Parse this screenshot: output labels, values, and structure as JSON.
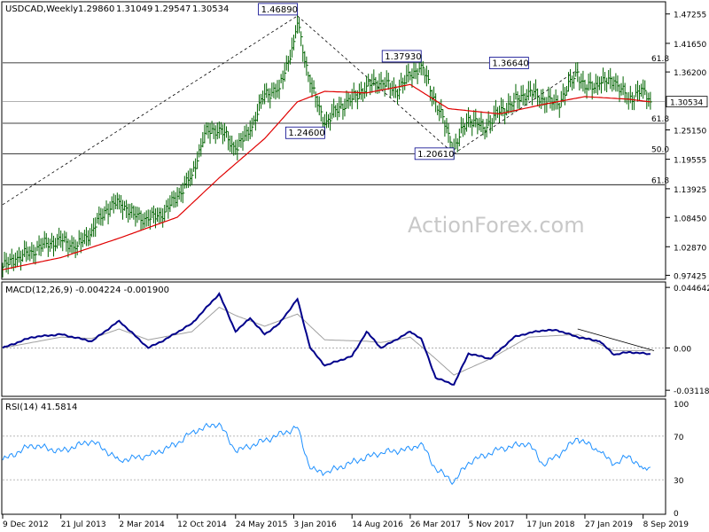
{
  "colors": {
    "background": "#ffffff",
    "frame": "#000000",
    "price_bars": "#006400",
    "moving_average": "#e00000",
    "macd_line": "#00008b",
    "signal_line": "#a0a0a0",
    "rsi_line": "#1e90ff",
    "level_lines": "#000000",
    "watermark": "#c8c8c8"
  },
  "watermark": "ActionForex.com",
  "chart_data": [
    {
      "type": "line",
      "panel": "price",
      "title": "USDCAD,Weekly",
      "header_values": [
        "1.29860",
        "1.31049",
        "1.29547",
        "1.30534"
      ],
      "ylim": [
        0.9683,
        1.4941
      ],
      "y_tick_labels": [
        "1.47255",
        "1.41650",
        "1.36200",
        "1.30534",
        "1.25150",
        "1.19555",
        "1.13925",
        "1.08450",
        "1.02870",
        "0.97425"
      ],
      "last_price_label": "1.30534",
      "annotations": [
        {
          "text": "1.46890",
          "x": "2016-01-17",
          "y": 1.4689
        },
        {
          "text": "1.37930",
          "x": "2017-05-07",
          "y": 1.3793
        },
        {
          "text": "1.36640",
          "x": "2018-06-24",
          "y": 1.3664
        },
        {
          "text": "1.24600",
          "x": "2016-05-01",
          "y": 1.246
        },
        {
          "text": "1.20610",
          "x": "2017-09-10",
          "y": 1.2061
        }
      ],
      "horizontal_levels": [
        {
          "value": 1.3793,
          "label": "61.8"
        },
        {
          "value": 1.2642,
          "label": "61.8"
        },
        {
          "value": 1.2061,
          "label": "50.0"
        },
        {
          "value": 1.147,
          "label": "61.8"
        },
        {
          "value": 1.30534,
          "label": ""
        }
      ],
      "trend_lines": [
        {
          "from": {
            "x": "2012-12-09",
            "y": 1.109
          },
          "to": {
            "x": "2016-01-17",
            "y": 1.4689
          }
        },
        {
          "from": {
            "x": "2016-01-17",
            "y": 1.4689
          },
          "to": {
            "x": "2017-09-10",
            "y": 1.2061
          }
        },
        {
          "from": {
            "x": "2017-09-10",
            "y": 1.2061
          },
          "to": {
            "x": "2018-12-30",
            "y": 1.3664
          }
        }
      ],
      "series": [
        {
          "kind": "close",
          "x": [
            "2012-12-09",
            "2013-01-27",
            "2013-03-31",
            "2013-05-26",
            "2013-07-21",
            "2013-09-22",
            "2013-11-17",
            "2014-01-12",
            "2014-03-02",
            "2014-04-27",
            "2014-06-22",
            "2014-08-24",
            "2014-10-12",
            "2014-12-07",
            "2015-01-25",
            "2015-03-22",
            "2015-05-24",
            "2015-07-19",
            "2015-09-13",
            "2015-11-08",
            "2016-01-03",
            "2016-01-17",
            "2016-03-06",
            "2016-05-01",
            "2016-06-26",
            "2016-08-14",
            "2016-10-09",
            "2016-12-04",
            "2017-01-29",
            "2017-03-26",
            "2017-05-07",
            "2017-07-02",
            "2017-08-20",
            "2017-09-10",
            "2017-11-05",
            "2017-12-31",
            "2018-03-04",
            "2018-04-29",
            "2018-06-24",
            "2018-08-19",
            "2018-10-14",
            "2018-12-30",
            "2019-01-27",
            "2019-03-24",
            "2019-05-19",
            "2019-07-14",
            "2019-09-08",
            "2019-10-06"
          ],
          "values": [
            0.99,
            1.005,
            1.02,
            1.035,
            1.04,
            1.03,
            1.06,
            1.1,
            1.115,
            1.09,
            1.08,
            1.095,
            1.125,
            1.165,
            1.245,
            1.255,
            1.215,
            1.25,
            1.32,
            1.33,
            1.42,
            1.455,
            1.34,
            1.262,
            1.295,
            1.31,
            1.335,
            1.345,
            1.325,
            1.355,
            1.375,
            1.305,
            1.245,
            1.215,
            1.275,
            1.255,
            1.285,
            1.305,
            1.325,
            1.31,
            1.3,
            1.362,
            1.33,
            1.34,
            1.345,
            1.31,
            1.33,
            1.305
          ]
        },
        {
          "kind": "moving_average",
          "x": [
            "2012-12-09",
            "2013-07-21",
            "2014-03-02",
            "2014-10-12",
            "2015-03-22",
            "2015-09-13",
            "2016-01-17",
            "2016-05-01",
            "2016-10-09",
            "2017-03-26",
            "2017-08-20",
            "2018-03-04",
            "2018-08-19",
            "2019-01-27",
            "2019-07-14",
            "2019-10-06"
          ],
          "values": [
            0.985,
            1.008,
            1.045,
            1.085,
            1.16,
            1.235,
            1.305,
            1.325,
            1.322,
            1.338,
            1.292,
            1.282,
            1.3,
            1.315,
            1.31,
            1.305
          ]
        }
      ]
    },
    {
      "type": "line",
      "panel": "macd",
      "title": "MACD(12,26,9) -0.004224 -0.001900",
      "ylim": [
        -0.035,
        0.048
      ],
      "y_tick_labels": [
        "0.044642",
        "0.00",
        "-0.031183"
      ],
      "series": [
        {
          "kind": "macd",
          "x": [
            "2012-12-09",
            "2013-03-31",
            "2013-07-21",
            "2013-11-17",
            "2014-03-02",
            "2014-06-22",
            "2014-08-24",
            "2014-12-07",
            "2015-03-22",
            "2015-05-24",
            "2015-07-19",
            "2015-09-13",
            "2015-11-08",
            "2016-01-17",
            "2016-03-06",
            "2016-05-01",
            "2016-08-14",
            "2016-10-09",
            "2016-12-04",
            "2017-03-26",
            "2017-05-07",
            "2017-07-02",
            "2017-09-10",
            "2017-11-05",
            "2018-01-28",
            "2018-04-29",
            "2018-06-24",
            "2018-08-19",
            "2018-10-14",
            "2018-12-30",
            "2019-03-24",
            "2019-05-19",
            "2019-07-14",
            "2019-10-06"
          ],
          "values": [
            0.0,
            0.008,
            0.01,
            0.005,
            0.02,
            0.0,
            0.006,
            0.018,
            0.04,
            0.012,
            0.022,
            0.01,
            0.018,
            0.036,
            0.0,
            -0.013,
            -0.006,
            0.012,
            0.0,
            0.012,
            0.007,
            -0.022,
            -0.027,
            -0.004,
            -0.008,
            0.008,
            0.011,
            0.013,
            0.013,
            0.008,
            0.005,
            -0.005,
            -0.003,
            -0.0045
          ]
        },
        {
          "kind": "signal",
          "x": [
            "2012-12-09",
            "2013-07-21",
            "2013-11-17",
            "2014-03-02",
            "2014-06-22",
            "2014-12-07",
            "2015-03-22",
            "2015-05-24",
            "2015-09-13",
            "2016-01-17",
            "2016-05-01",
            "2016-10-09",
            "2016-12-04",
            "2017-03-26",
            "2017-07-02",
            "2017-09-10",
            "2018-01-28",
            "2018-06-24",
            "2018-12-30",
            "2019-05-19",
            "2019-10-06"
          ],
          "values": [
            0.0,
            0.008,
            0.007,
            0.014,
            0.006,
            0.012,
            0.03,
            0.024,
            0.016,
            0.025,
            0.006,
            0.005,
            0.004,
            0.008,
            -0.008,
            -0.02,
            -0.008,
            0.008,
            0.01,
            -0.002,
            -0.0019
          ]
        }
      ],
      "trend_lines": [
        {
          "from": {
            "x": "2018-12-30",
            "y": 0.014
          },
          "to": {
            "x": "2019-10-20",
            "y": -0.002
          }
        }
      ]
    },
    {
      "type": "line",
      "panel": "rsi",
      "title": "RSI(14) 41.5814",
      "ylim": [
        0,
        100
      ],
      "y_tick_labels": [
        "100",
        "70",
        "30",
        "0"
      ],
      "levels": [
        70,
        30
      ],
      "series": [
        {
          "kind": "rsi",
          "x": [
            "2012-12-09",
            "2013-03-31",
            "2013-07-21",
            "2013-11-17",
            "2014-03-02",
            "2014-06-22",
            "2014-10-12",
            "2014-12-07",
            "2015-03-22",
            "2015-05-24",
            "2015-09-13",
            "2016-01-17",
            "2016-03-06",
            "2016-05-01",
            "2016-08-14",
            "2016-12-04",
            "2017-03-26",
            "2017-05-07",
            "2017-07-02",
            "2017-09-10",
            "2017-11-05",
            "2018-03-04",
            "2018-06-24",
            "2018-08-19",
            "2018-10-14",
            "2018-12-30",
            "2019-03-24",
            "2019-05-19",
            "2019-07-14",
            "2019-09-08",
            "2019-10-06"
          ],
          "values": [
            48,
            62,
            56,
            66,
            48,
            52,
            63,
            74,
            82,
            56,
            66,
            78,
            40,
            36,
            46,
            55,
            58,
            64,
            40,
            28,
            46,
            58,
            64,
            44,
            52,
            68,
            56,
            44,
            52,
            40,
            41.6
          ]
        }
      ]
    }
  ],
  "x_axis": {
    "start": "2012-12-09",
    "end": "2019-10-20",
    "tick_labels": [
      {
        "date": "2012-12-09",
        "label": "9 Dec 2012"
      },
      {
        "date": "2013-07-21",
        "label": "21 Jul 2013"
      },
      {
        "date": "2014-03-02",
        "label": "2 Mar 2014"
      },
      {
        "date": "2014-10-12",
        "label": "12 Oct 2014"
      },
      {
        "date": "2015-05-24",
        "label": "24 May 2015"
      },
      {
        "date": "2016-01-03",
        "label": "3 Jan 2016"
      },
      {
        "date": "2016-08-14",
        "label": "14 Aug 2016"
      },
      {
        "date": "2017-03-26",
        "label": "26 Mar 2017"
      },
      {
        "date": "2017-11-05",
        "label": "5 Nov 2017"
      },
      {
        "date": "2018-06-17",
        "label": "17 Jun 2018"
      },
      {
        "date": "2019-01-27",
        "label": "27 Jan 2019"
      },
      {
        "date": "2019-09-08",
        "label": "8 Sep 2019"
      }
    ]
  }
}
